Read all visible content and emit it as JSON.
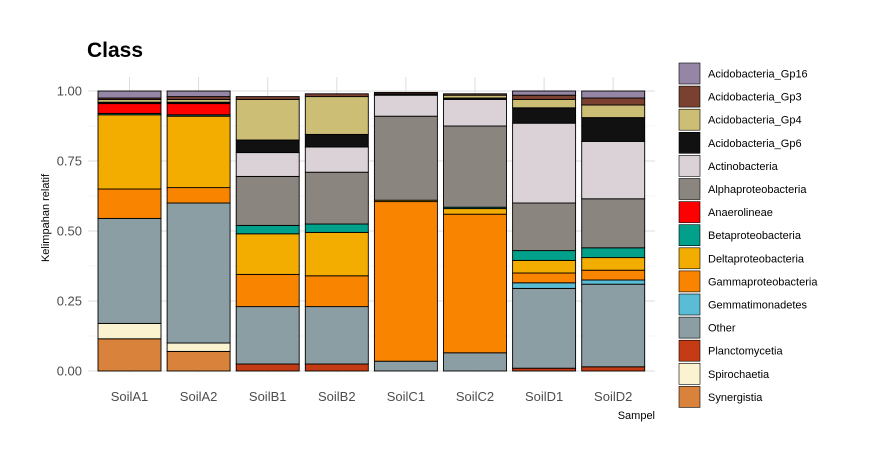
{
  "chart_data": {
    "type": "bar",
    "stacked": true,
    "title": "Class",
    "xlabel": "Sampel",
    "ylabel": "Kelimpahan relatif",
    "ylim": [
      0,
      1
    ],
    "yticks": [
      "0.00",
      "0.25",
      "0.50",
      "0.75",
      "1.00"
    ],
    "grid": true,
    "legend_position": "right",
    "categories": [
      "SoilA1",
      "SoilA2",
      "SoilB1",
      "SoilB2",
      "SoilC1",
      "SoilC2",
      "SoilD1",
      "SoilD2"
    ],
    "series": [
      {
        "name": "Synergistia",
        "color": "#D9823B",
        "values": [
          0.115,
          0.07,
          0.0,
          0.0,
          0.0,
          0.0,
          0.0,
          0.0
        ]
      },
      {
        "name": "Spirochaetia",
        "color": "#FBF2D0",
        "values": [
          0.055,
          0.03,
          0.0,
          0.0,
          0.0,
          0.0,
          0.0,
          0.0
        ]
      },
      {
        "name": "Planctomycetia",
        "color": "#C53C14",
        "values": [
          0.0,
          0.0,
          0.025,
          0.025,
          0.0,
          0.0,
          0.01,
          0.015
        ]
      },
      {
        "name": "Other",
        "color": "#8A9EA4",
        "values": [
          0.375,
          0.5,
          0.205,
          0.205,
          0.035,
          0.065,
          0.285,
          0.295
        ]
      },
      {
        "name": "Gemmatimonadetes",
        "color": "#5BBCD6",
        "values": [
          0.0,
          0.0,
          0.0,
          0.0,
          0.0,
          0.0,
          0.02,
          0.015
        ]
      },
      {
        "name": "Gammaproteobacteria",
        "color": "#F98400",
        "values": [
          0.105,
          0.055,
          0.115,
          0.11,
          0.57,
          0.495,
          0.035,
          0.035
        ]
      },
      {
        "name": "Deltaproteobacteria",
        "color": "#F2AD00",
        "values": [
          0.265,
          0.255,
          0.145,
          0.155,
          0.005,
          0.02,
          0.045,
          0.045
        ]
      },
      {
        "name": "Betaproteobacteria",
        "color": "#00A08A",
        "values": [
          0.005,
          0.005,
          0.03,
          0.03,
          0.0,
          0.005,
          0.035,
          0.035
        ]
      },
      {
        "name": "Anaerolineae",
        "color": "#FF0000",
        "values": [
          0.035,
          0.04,
          0.0,
          0.0,
          0.0,
          0.0,
          0.0,
          0.0
        ]
      },
      {
        "name": "Alphaproteobacteria",
        "color": "#8B8580",
        "values": [
          0.0,
          0.0,
          0.175,
          0.185,
          0.3,
          0.29,
          0.17,
          0.175
        ]
      },
      {
        "name": "Actinobacteria",
        "color": "#DAD2D6",
        "values": [
          0.0,
          0.0,
          0.085,
          0.09,
          0.075,
          0.095,
          0.285,
          0.205
        ]
      },
      {
        "name": "Acidobacteria_Gp6",
        "color": "#111111",
        "values": [
          0.005,
          0.005,
          0.045,
          0.045,
          0.005,
          0.005,
          0.055,
          0.085
        ]
      },
      {
        "name": "Acidobacteria_Gp4",
        "color": "#CDBE75",
        "values": [
          0.01,
          0.01,
          0.145,
          0.135,
          0.0,
          0.01,
          0.03,
          0.045
        ]
      },
      {
        "name": "Acidobacteria_Gp3",
        "color": "#7A4030",
        "values": [
          0.005,
          0.01,
          0.01,
          0.01,
          0.005,
          0.005,
          0.015,
          0.025
        ]
      },
      {
        "name": "Acidobacteria_Gp16",
        "color": "#9686A6",
        "values": [
          0.025,
          0.02,
          0.0,
          0.0,
          0.0,
          0.0,
          0.015,
          0.025
        ]
      }
    ],
    "legend_order": [
      "Acidobacteria_Gp16",
      "Acidobacteria_Gp3",
      "Acidobacteria_Gp4",
      "Acidobacteria_Gp6",
      "Actinobacteria",
      "Alphaproteobacteria",
      "Anaerolineae",
      "Betaproteobacteria",
      "Deltaproteobacteria",
      "Gammaproteobacteria",
      "Gemmatimonadetes",
      "Other",
      "Planctomycetia",
      "Spirochaetia",
      "Synergistia"
    ]
  }
}
